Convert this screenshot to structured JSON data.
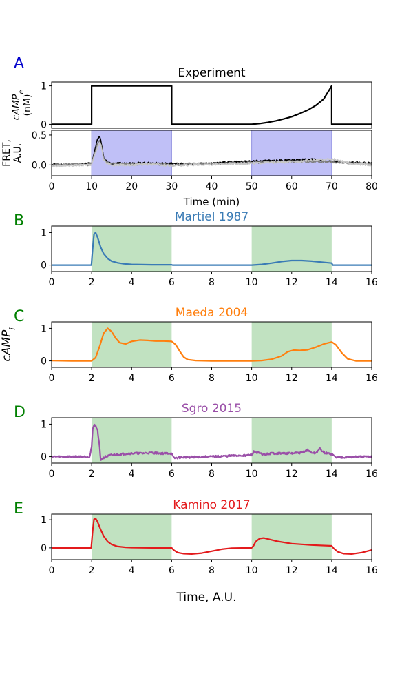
{
  "figure": {
    "xlabel": "Time, A.U.",
    "ylabel_shared": "cAMP_i"
  },
  "chart_data": [
    {
      "id": "A1",
      "type": "line",
      "panel_letter": "A",
      "title": "Experiment",
      "ylabel_lines": [
        "cAMP_e",
        "(nM)"
      ],
      "xlim": [
        0,
        80
      ],
      "ylim": [
        -0.1,
        1.1
      ],
      "yticks": [
        0,
        1
      ],
      "series": [
        {
          "color": "#000000",
          "x": [
            0,
            10,
            10,
            30,
            30,
            50,
            52,
            54,
            56,
            58,
            60,
            62,
            64,
            66,
            68,
            70,
            70,
            80
          ],
          "y": [
            0,
            0,
            1,
            1,
            0,
            0,
            0.02,
            0.05,
            0.09,
            0.14,
            0.2,
            0.28,
            0.37,
            0.49,
            0.66,
            1,
            0,
            0
          ]
        }
      ]
    },
    {
      "id": "A2",
      "type": "line",
      "ylabel_lines": [
        "FRET,",
        "A.U."
      ],
      "xlim": [
        0,
        80
      ],
      "ylim": [
        -0.18,
        0.58
      ],
      "yticks": [
        0.0,
        0.5
      ],
      "xticks": [
        0,
        10,
        20,
        30,
        40,
        50,
        60,
        70,
        80
      ],
      "xlabel": "Time (min)",
      "shaded": [
        {
          "from": 10,
          "to": 30,
          "color": "#b0b0f5"
        },
        {
          "from": 50,
          "to": 70,
          "color": "#b0b0f5"
        }
      ],
      "series": [
        {
          "color": "#000000",
          "x": [
            0,
            5,
            9,
            10,
            11,
            11.5,
            12,
            12.5,
            13,
            14,
            15,
            20,
            25,
            30,
            35,
            40,
            45,
            50,
            55,
            60,
            65,
            70,
            75,
            80
          ],
          "y": [
            0.01,
            0.0,
            0.02,
            0.03,
            0.3,
            0.43,
            0.48,
            0.35,
            0.12,
            0.04,
            0.02,
            0.03,
            0.03,
            0.02,
            0.01,
            0.03,
            0.05,
            0.06,
            0.07,
            0.08,
            0.09,
            0.06,
            0.04,
            0.03
          ]
        },
        {
          "color": "#808080",
          "x": [
            0,
            5,
            9,
            10,
            11,
            11.5,
            12,
            12.5,
            13,
            14,
            15,
            20,
            25,
            30,
            35,
            40,
            45,
            50,
            55,
            60,
            65,
            70,
            75,
            80
          ],
          "y": [
            0.0,
            0.01,
            0.0,
            0.02,
            0.25,
            0.37,
            0.42,
            0.3,
            0.1,
            0.03,
            0.02,
            0.01,
            0.02,
            0.0,
            0.02,
            0.02,
            0.03,
            0.04,
            0.05,
            0.06,
            0.06,
            0.05,
            0.03,
            0.02
          ]
        },
        {
          "color": "#c8c8c8",
          "x": [
            0,
            5,
            9,
            10,
            11,
            11.5,
            12,
            12.5,
            13,
            14,
            15,
            20,
            25,
            30,
            35,
            40,
            45,
            50,
            55,
            60,
            65,
            70,
            75,
            80
          ],
          "y": [
            -0.02,
            -0.01,
            0.0,
            0.01,
            0.2,
            0.3,
            0.38,
            0.28,
            0.08,
            0.02,
            0.0,
            0.0,
            0.01,
            -0.01,
            0.0,
            0.01,
            0.02,
            0.03,
            0.04,
            0.05,
            0.08,
            0.1,
            0.02,
            0.0
          ]
        }
      ]
    },
    {
      "id": "B",
      "type": "line",
      "panel_letter": "B",
      "title": "Martiel 1987",
      "title_color": "#3a7bb5",
      "xlim": [
        0,
        16
      ],
      "ylim": [
        -0.2,
        1.2
      ],
      "yticks": [
        0,
        1
      ],
      "xticks": [
        0,
        2,
        4,
        6,
        8,
        10,
        12,
        14,
        16
      ],
      "shaded": [
        {
          "from": 2,
          "to": 6,
          "color": "#b2dbb2"
        },
        {
          "from": 10,
          "to": 14,
          "color": "#b2dbb2"
        }
      ],
      "series": [
        {
          "color": "#3a7bb5",
          "x": [
            0,
            1.99,
            2.05,
            2.12,
            2.2,
            2.3,
            2.45,
            2.6,
            2.8,
            3.0,
            3.3,
            3.6,
            4,
            5,
            6,
            6.05,
            8,
            10,
            10.5,
            11,
            11.5,
            12,
            12.5,
            13,
            13.5,
            14,
            14.05,
            16
          ],
          "y": [
            0,
            0,
            0.5,
            0.95,
            1.0,
            0.85,
            0.55,
            0.35,
            0.2,
            0.12,
            0.07,
            0.04,
            0.02,
            0.01,
            0.01,
            0,
            0,
            0,
            0.02,
            0.06,
            0.11,
            0.14,
            0.14,
            0.12,
            0.09,
            0.06,
            0,
            0
          ]
        }
      ]
    },
    {
      "id": "C",
      "type": "line",
      "panel_letter": "C",
      "title": "Maeda 2004",
      "title_color": "#ff7f0e",
      "xlim": [
        0,
        16
      ],
      "ylim": [
        -0.2,
        1.2
      ],
      "yticks": [
        0,
        1
      ],
      "xticks": [
        0,
        2,
        4,
        6,
        8,
        10,
        12,
        14,
        16
      ],
      "shaded": [
        {
          "from": 2,
          "to": 6,
          "color": "#b2dbb2"
        },
        {
          "from": 10,
          "to": 14,
          "color": "#b2dbb2"
        }
      ],
      "series": [
        {
          "color": "#ff7f0e",
          "x": [
            0,
            1,
            2,
            2.2,
            2.4,
            2.6,
            2.8,
            3.0,
            3.2,
            3.4,
            3.7,
            4.0,
            4.4,
            4.8,
            5.2,
            5.6,
            6.0,
            6.2,
            6.4,
            6.6,
            6.8,
            7.2,
            8,
            9,
            10,
            10.5,
            11,
            11.5,
            11.8,
            12.1,
            12.4,
            12.8,
            13.2,
            13.6,
            14.0,
            14.2,
            14.5,
            14.8,
            15.2,
            16
          ],
          "y": [
            0.01,
            0.0,
            0.0,
            0.1,
            0.45,
            0.85,
            1.0,
            0.9,
            0.7,
            0.56,
            0.52,
            0.6,
            0.64,
            0.63,
            0.61,
            0.61,
            0.6,
            0.5,
            0.3,
            0.12,
            0.04,
            0.01,
            0.0,
            0.0,
            0.0,
            0.01,
            0.05,
            0.15,
            0.28,
            0.33,
            0.32,
            0.34,
            0.42,
            0.52,
            0.58,
            0.5,
            0.25,
            0.06,
            0.0,
            0.0
          ]
        }
      ]
    },
    {
      "id": "D",
      "type": "line",
      "panel_letter": "D",
      "title": "Sgro 2015",
      "title_color": "#9a4fa8",
      "xlim": [
        0,
        16
      ],
      "ylim": [
        -0.2,
        1.2
      ],
      "yticks": [
        0,
        1
      ],
      "xticks": [
        0,
        2,
        4,
        6,
        8,
        10,
        12,
        14,
        16
      ],
      "noise": 0.03,
      "shaded": [
        {
          "from": 2,
          "to": 6,
          "color": "#b2dbb2"
        },
        {
          "from": 10,
          "to": 14,
          "color": "#b2dbb2"
        }
      ],
      "series": [
        {
          "color": "#9a4fa8",
          "x": [
            0,
            1.9,
            2.0,
            2.05,
            2.12,
            2.2,
            2.3,
            2.38,
            2.45,
            2.55,
            2.7,
            3.0,
            3.5,
            4,
            4.5,
            5,
            5.5,
            6,
            6.1,
            6.5,
            8,
            10,
            10.1,
            10.3,
            10.6,
            11,
            12,
            12.5,
            12.8,
            13.0,
            13.2,
            13.4,
            13.6,
            14,
            14.2,
            16
          ],
          "y": [
            0.0,
            0.0,
            0.3,
            0.8,
            1.0,
            0.95,
            0.8,
            0.4,
            -0.1,
            -0.05,
            0.0,
            0.05,
            0.08,
            0.1,
            0.1,
            0.12,
            0.1,
            0.1,
            -0.05,
            -0.02,
            0.0,
            0.05,
            0.15,
            0.12,
            0.06,
            0.1,
            0.1,
            0.12,
            0.2,
            0.12,
            0.1,
            0.25,
            0.12,
            0.08,
            -0.02,
            0.0
          ]
        }
      ]
    },
    {
      "id": "E",
      "type": "line",
      "panel_letter": "E",
      "title": "Kamino 2017",
      "title_color": "#e31a1c",
      "xlim": [
        0,
        16
      ],
      "ylim": [
        -0.42,
        1.2
      ],
      "yticks": [
        0,
        1
      ],
      "xticks": [
        0,
        2,
        4,
        6,
        8,
        10,
        12,
        14,
        16
      ],
      "xlabel": "Time, A.U.",
      "shaded": [
        {
          "from": 2,
          "to": 6,
          "color": "#b2dbb2"
        },
        {
          "from": 10,
          "to": 14,
          "color": "#b2dbb2"
        }
      ],
      "series": [
        {
          "color": "#e31a1c",
          "x": [
            0,
            1.98,
            2.05,
            2.12,
            2.2,
            2.3,
            2.45,
            2.6,
            2.8,
            3.0,
            3.3,
            3.7,
            4,
            5,
            6,
            6.1,
            6.3,
            6.6,
            7,
            7.5,
            8,
            8.5,
            9,
            10,
            10.1,
            10.2,
            10.4,
            10.6,
            10.9,
            11.3,
            12,
            13,
            14,
            14.1,
            14.3,
            14.6,
            15,
            15.5,
            16
          ],
          "y": [
            0,
            0,
            0.6,
            1.02,
            1.05,
            0.92,
            0.65,
            0.42,
            0.22,
            0.12,
            0.05,
            0.02,
            0.01,
            0.0,
            0.0,
            -0.08,
            -0.17,
            -0.21,
            -0.22,
            -0.19,
            -0.12,
            -0.05,
            -0.01,
            0.0,
            0.08,
            0.22,
            0.33,
            0.35,
            0.3,
            0.23,
            0.15,
            0.1,
            0.07,
            -0.02,
            -0.14,
            -0.21,
            -0.22,
            -0.17,
            -0.08
          ]
        }
      ]
    }
  ]
}
